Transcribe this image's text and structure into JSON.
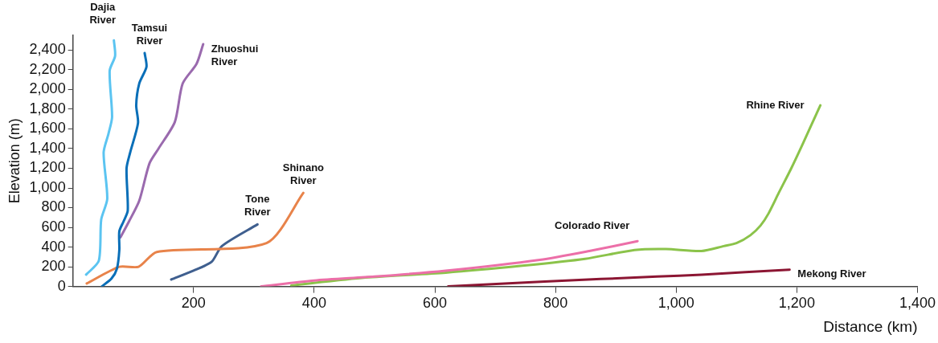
{
  "chart_data": {
    "type": "line",
    "xlabel": "Distance (km)",
    "ylabel": "Elevation (m)",
    "xlim": [
      0,
      1400
    ],
    "ylim": [
      0,
      2550
    ],
    "xticks": [
      200,
      {
        "value": 400,
        "label": "400"
      },
      {
        "value": 600,
        "label": "600"
      },
      {
        "value": 800,
        "label": "800"
      },
      {
        "value": 1000,
        "label": "1,000"
      },
      {
        "value": 1200,
        "label": "1,200"
      },
      {
        "value": 1400,
        "label": "1,400"
      }
    ],
    "yticks": [
      0,
      200,
      400,
      600,
      800,
      {
        "value": 1000,
        "label": "1,000"
      },
      {
        "value": 1200,
        "label": "1,200"
      },
      {
        "value": 1400,
        "label": "1,400"
      },
      {
        "value": 1600,
        "label": "1,600"
      },
      {
        "value": 1800,
        "label": "1,800"
      },
      {
        "value": 2000,
        "label": "2,000"
      },
      {
        "value": 2200,
        "label": "2,200"
      },
      {
        "value": 2400,
        "label": "2,400"
      }
    ],
    "grid": false,
    "legend": false,
    "marker": "none",
    "line_style": "solid",
    "series": [
      {
        "name": "Dajia River",
        "color": "#5bc4f1",
        "x": [
          22,
          43,
          47,
          57,
          51,
          59,
          65,
          61,
          70,
          68
        ],
        "values": [
          120,
          260,
          680,
          890,
          1360,
          1550,
          1720,
          2190,
          2340,
          2500
        ]
      },
      {
        "name": "Tamsui River",
        "color": "#0a6fb8",
        "x": [
          48,
          64,
          73,
          77,
          77,
          84,
          91,
          89,
          95,
          108,
          105,
          110,
          122,
          119
        ],
        "values": [
          0,
          80,
          180,
          370,
          560,
          660,
          770,
          1200,
          1360,
          1660,
          1840,
          2060,
          2230,
          2370
        ]
      },
      {
        "name": "Zhuoshui River",
        "color": "#9a6aae",
        "x": [
          79,
          93,
          110,
          127,
          142,
          169,
          182,
          205,
          216
        ],
        "values": [
          500,
          660,
          870,
          1250,
          1400,
          1670,
          2060,
          2260,
          2460
        ]
      },
      {
        "name": "Shinano River",
        "color": "#e8834a",
        "x": [
          23,
          77,
          109,
          139,
          321,
          382
        ],
        "values": [
          30,
          200,
          200,
          350,
          440,
          950
        ]
      },
      {
        "name": "Tone River",
        "color": "#3f5f8f",
        "x": [
          163,
          200,
          230,
          247,
          306
        ],
        "values": [
          70,
          160,
          250,
          410,
          630
        ]
      },
      {
        "name": "Colorado River",
        "color": "#ec6fa8",
        "x": [
          312,
          400,
          500,
          618,
          774,
          856,
          936
        ],
        "values": [
          0,
          60,
          100,
          160,
          270,
          360,
          460
        ]
      },
      {
        "name": "Rhine River",
        "color": "#8bc34a",
        "x": [
          362,
          485,
          618,
          745,
          849,
          931,
          983,
          1042,
          1079,
          1100,
          1123,
          1140,
          1153,
          1170,
          1190,
          1210,
          1239
        ],
        "values": [
          10,
          90,
          140,
          210,
          280,
          370,
          380,
          360,
          410,
          440,
          520,
          620,
          740,
          950,
          1190,
          1450,
          1840
        ]
      },
      {
        "name": "Mekong River",
        "color": "#8c1633",
        "x": [
          622,
          782,
          968,
          1042,
          1188
        ],
        "values": [
          0,
          50,
          100,
          120,
          170
        ]
      }
    ]
  }
}
